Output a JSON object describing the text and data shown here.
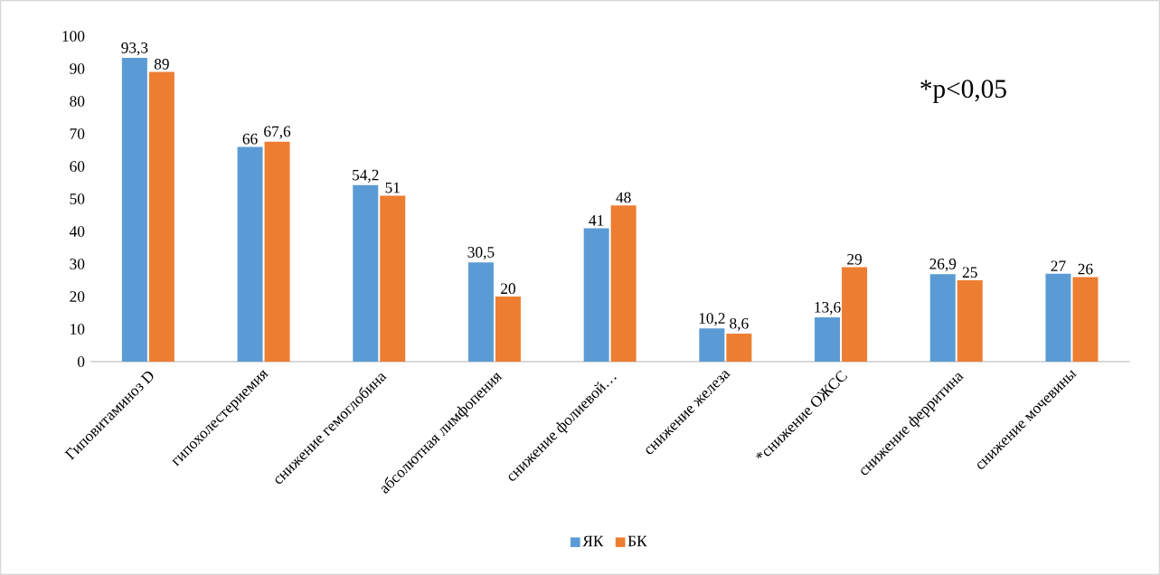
{
  "chart_data": {
    "type": "bar",
    "categories": [
      "Гиповитаминоз D",
      "гипохолестериемия",
      "снижение гемоглобина",
      "абсолютная лимфопения",
      "снижение фолиевой…",
      "снижение железа",
      "*снижение ОЖСС",
      "снижение ферритина",
      "снижение мочевины"
    ],
    "series": [
      {
        "name": "ЯК",
        "color": "#5b9bd5",
        "values": [
          93.3,
          66,
          54.2,
          30.5,
          41,
          10.2,
          13.6,
          26.9,
          27
        ],
        "value_labels": [
          "93,3",
          "66",
          "54,2",
          "30,5",
          "41",
          "10,2",
          "13,6",
          "26,9",
          "27"
        ]
      },
      {
        "name": "БК",
        "color": "#ed7d31",
        "values": [
          89,
          67.6,
          51,
          20,
          48,
          8.6,
          29,
          25,
          26
        ],
        "value_labels": [
          "89",
          "67,6",
          "51",
          "20",
          "48",
          "8,6",
          "29",
          "25",
          "26"
        ]
      }
    ],
    "ylim": [
      0,
      100
    ],
    "yticks": [
      0,
      10,
      20,
      30,
      40,
      50,
      60,
      70,
      80,
      90,
      100
    ],
    "grid": false,
    "legend": "bottom",
    "annotations": [
      "*p<0,05"
    ]
  }
}
